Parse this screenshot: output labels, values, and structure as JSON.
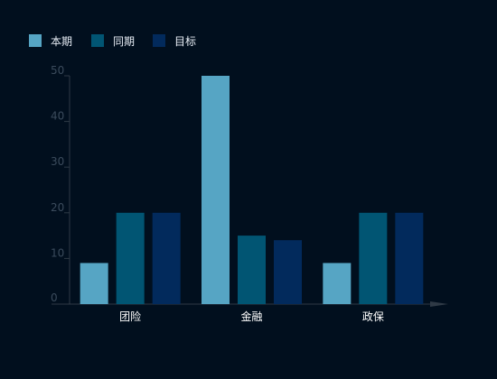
{
  "chart_data": {
    "type": "bar",
    "categories": [
      "团险",
      "金融",
      "政保"
    ],
    "series": [
      {
        "name": "本期",
        "values": [
          9,
          50,
          9
        ],
        "color": "#56a5c4"
      },
      {
        "name": "同期",
        "values": [
          20,
          15,
          20
        ],
        "color": "#015573"
      },
      {
        "name": "目标",
        "values": [
          20,
          14,
          20
        ],
        "color": "#022a5c"
      }
    ],
    "ylim": [
      0,
      50
    ],
    "yticks": [
      0,
      10,
      20,
      30,
      40,
      50
    ],
    "grid": false,
    "legend": "top-left",
    "title": "",
    "xlabel": "",
    "ylabel": "",
    "colors": {
      "background": "#010f1e",
      "axis": "#2f3a46",
      "tick_label": "#3b4b5c",
      "category_label": "#ffffff",
      "legend_text": "#e8eef6"
    }
  }
}
